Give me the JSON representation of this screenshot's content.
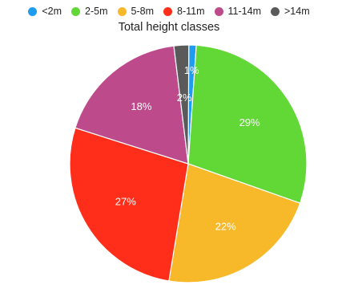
{
  "chart_data": {
    "type": "pie",
    "title": "Total height classes",
    "legend_position": "top",
    "categories": [
      "<2m",
      "2-5m",
      "5-8m",
      "8-11m",
      "11-14m",
      ">14m"
    ],
    "values": [
      1,
      29,
      22,
      27,
      18,
      2
    ],
    "labels": [
      "1%",
      "29%",
      "22%",
      "27%",
      "18%",
      "2%"
    ],
    "colors": [
      "#1e9cf0",
      "#61d836",
      "#f7b92a",
      "#ff2e1a",
      "#bd4a8b",
      "#5a5a5a"
    ]
  }
}
